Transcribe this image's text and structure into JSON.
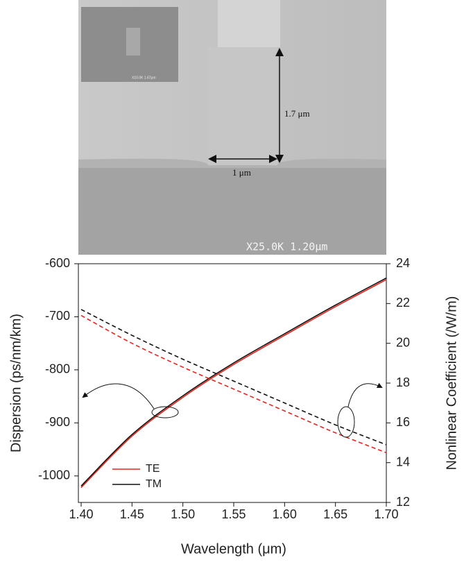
{
  "image": {
    "labels": [
      "1.7 μm",
      "1 μm",
      "X25.0K 1.20μm",
      "X10.0K 1.67μm"
    ]
  },
  "chart_data": {
    "type": "line",
    "xlabel": "Wavelength (μm)",
    "ylabel": "Dispersion (ps/nm/km)",
    "y2label": "Nonlinear Coefficient (/W/m)",
    "x": [
      1.4,
      1.45,
      1.5,
      1.55,
      1.6,
      1.65,
      1.7
    ],
    "series": [
      {
        "name": "TE",
        "color": "#e8231a",
        "linestyle": "solid",
        "values": [
          -1022,
          -925,
          -852,
          -790,
          -735,
          -681,
          -630
        ]
      },
      {
        "name": "TM",
        "color": "#111111",
        "linestyle": "solid",
        "values": [
          -1019,
          -922,
          -849,
          -787,
          -732,
          -678,
          -627
        ]
      },
      {
        "name": "TE",
        "color": "#e8231a",
        "linestyle": "dashed",
        "axis": "y2",
        "values": [
          21.4,
          20.0,
          18.8,
          17.7,
          16.6,
          15.5,
          14.5
        ]
      },
      {
        "name": "TM",
        "color": "#111111",
        "linestyle": "dashed",
        "axis": "y2",
        "values": [
          21.7,
          20.4,
          19.2,
          18.1,
          17.0,
          15.9,
          14.9
        ]
      }
    ],
    "xlim": [
      1.4,
      1.7
    ],
    "xticks": [
      {
        "value": 1.4,
        "label": "1.40"
      },
      {
        "value": 1.45,
        "label": "1.45"
      },
      {
        "value": 1.5,
        "label": "1.50"
      },
      {
        "value": 1.55,
        "label": "1.55"
      },
      {
        "value": 1.6,
        "label": "1.60"
      },
      {
        "value": 1.65,
        "label": "1.65"
      },
      {
        "value": 1.7,
        "label": "1.70"
      }
    ],
    "ylim": [
      -1050,
      -600
    ],
    "yticks": [
      -1000,
      -900,
      -800,
      -700,
      -600
    ],
    "y2lim": [
      12,
      24
    ],
    "y2ticks": [
      12,
      14,
      16,
      18,
      20,
      22,
      24
    ],
    "legend": "lower left"
  }
}
